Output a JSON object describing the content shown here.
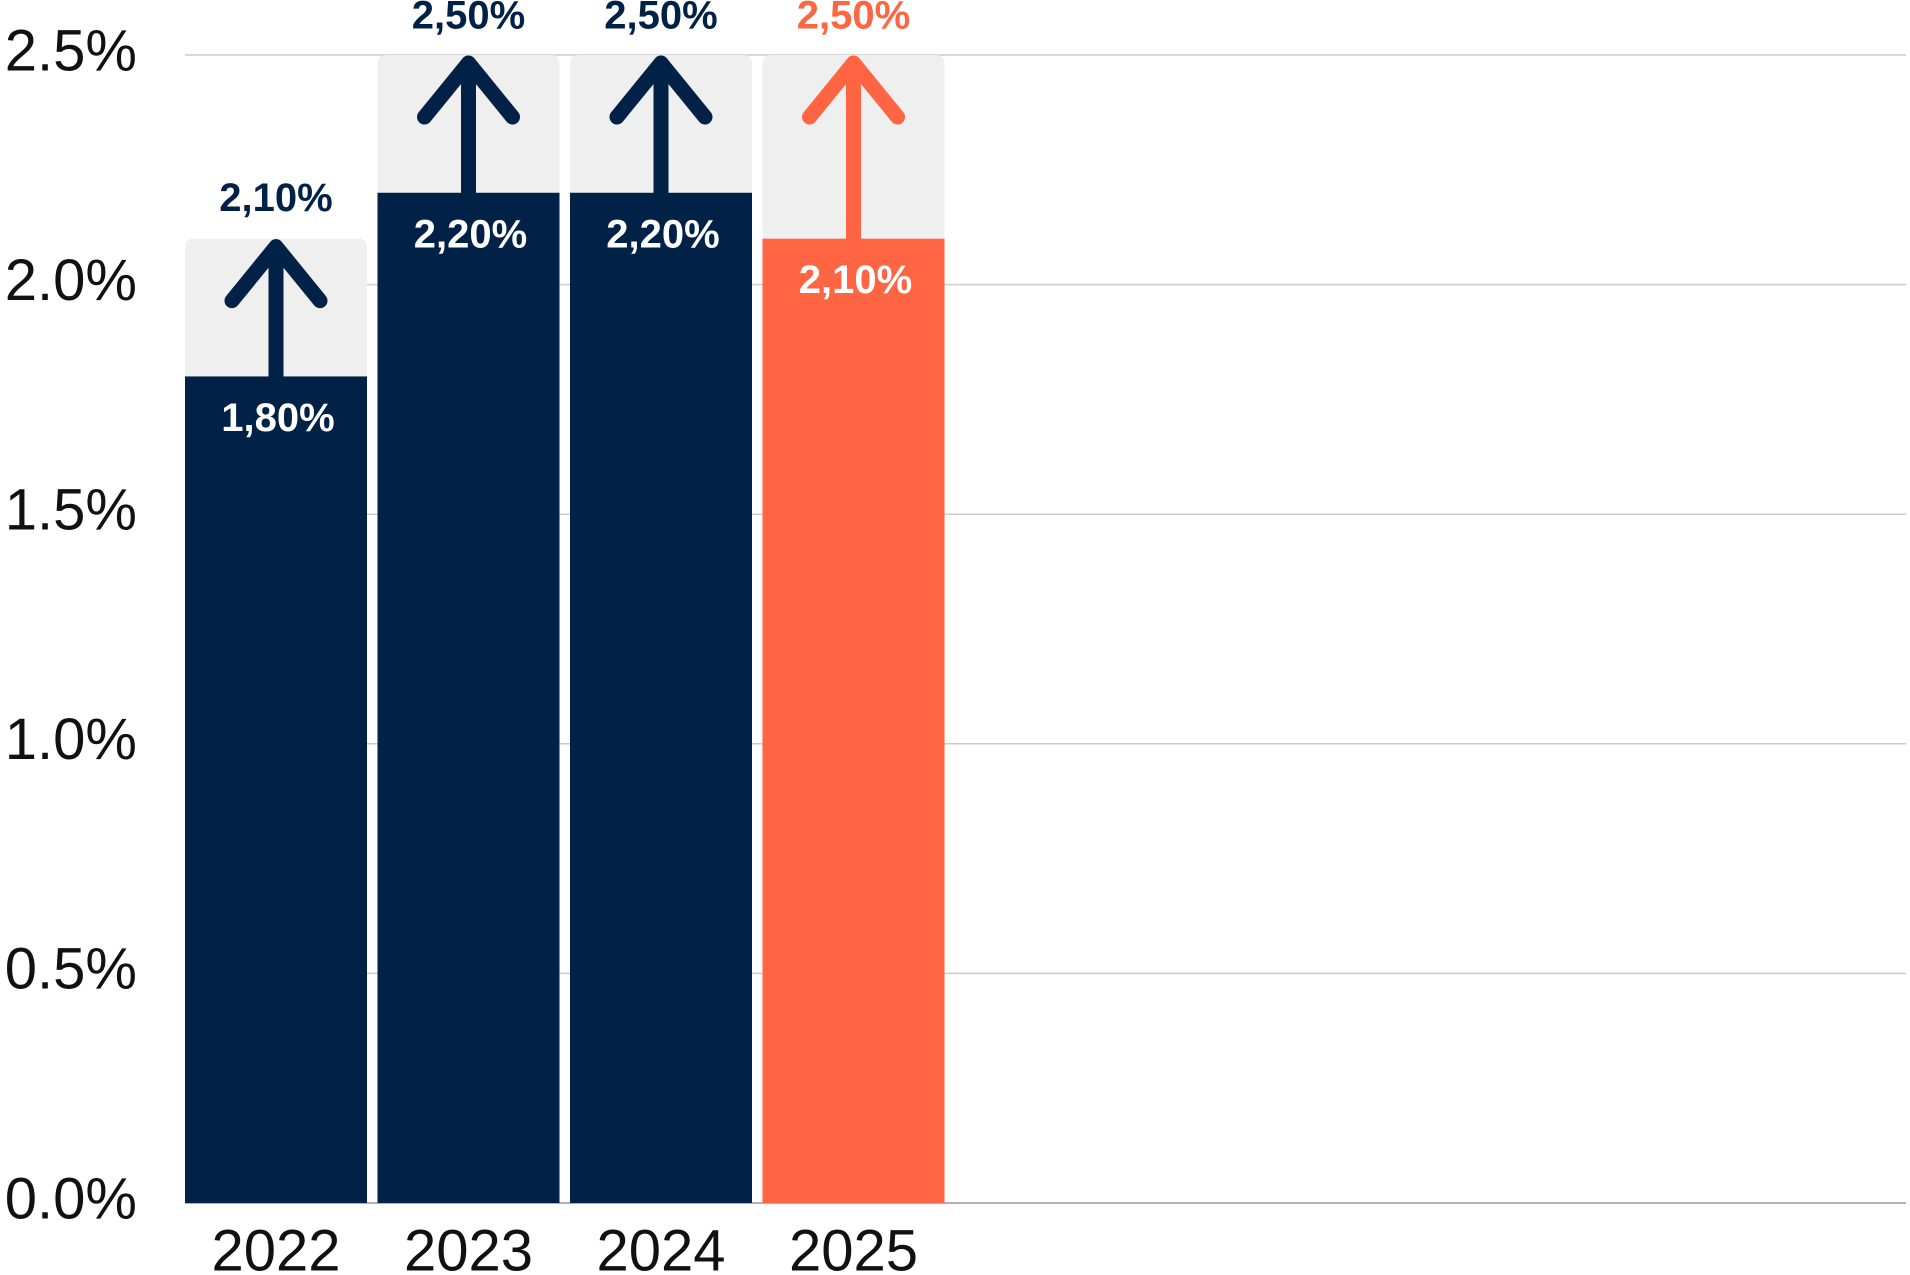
{
  "chart_data": {
    "type": "bar",
    "categories": [
      "2022",
      "2023",
      "2024",
      "2025"
    ],
    "series": [
      {
        "values": [
          1.8,
          2.2,
          2.2,
          2.1
        ],
        "value_labels": [
          "1,80%",
          "2,20%",
          "2,20%",
          "2,10%"
        ],
        "colors": [
          "#022147",
          "#022147",
          "#022147",
          "#ff6543"
        ]
      },
      {
        "values": [
          2.1,
          2.5,
          2.5,
          2.5
        ],
        "value_labels": [
          "2,10%",
          "2,50%",
          "2,50%",
          "2,50%"
        ],
        "color": "#efefef"
      }
    ],
    "ylim": [
      0,
      2.5
    ],
    "yticks": [
      {
        "value": 0,
        "label": "0.0%"
      },
      {
        "value": 0.5,
        "label": "0.5%"
      },
      {
        "value": 1,
        "label": "1.0%"
      },
      {
        "value": 1.5,
        "label": "1.5%"
      },
      {
        "value": 2,
        "label": "2.0%"
      },
      {
        "value": 2.5,
        "label": "2.5%"
      }
    ],
    "grid": true
  }
}
